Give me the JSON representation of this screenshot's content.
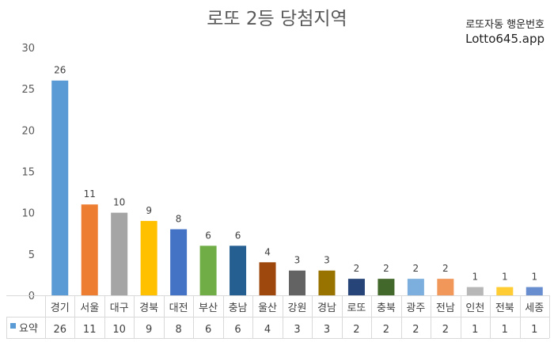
{
  "header": {
    "brand_line1": "로또자동 행운번호",
    "brand_line2": "Lotto645.app"
  },
  "chart_data": {
    "type": "bar",
    "title": "로또 2등 당첨지역",
    "categories": [
      "경기",
      "서울",
      "대구",
      "경북",
      "대전",
      "부산",
      "충남",
      "울산",
      "강원",
      "경남",
      "로또",
      "충북",
      "광주",
      "전남",
      "인천",
      "전북",
      "세종"
    ],
    "series": [
      {
        "name": "요약",
        "values": [
          26,
          11,
          10,
          9,
          8,
          6,
          6,
          4,
          3,
          3,
          2,
          2,
          2,
          2,
          1,
          1,
          1
        ],
        "colors": [
          "#5B9BD5",
          "#ED7D31",
          "#A5A5A5",
          "#FFC000",
          "#4472C4",
          "#70AD47",
          "#255E91",
          "#9E480E",
          "#636363",
          "#997300",
          "#264478",
          "#43682B",
          "#7CAFDD",
          "#F1975A",
          "#B7B7B7",
          "#FFCD33",
          "#698ED0"
        ]
      }
    ],
    "ylim": [
      0,
      30
    ],
    "yticks": [
      0,
      5,
      10,
      15,
      20,
      25,
      30
    ],
    "legend_marker_color": "#5B9BD5",
    "data_table": true,
    "grid": false
  }
}
